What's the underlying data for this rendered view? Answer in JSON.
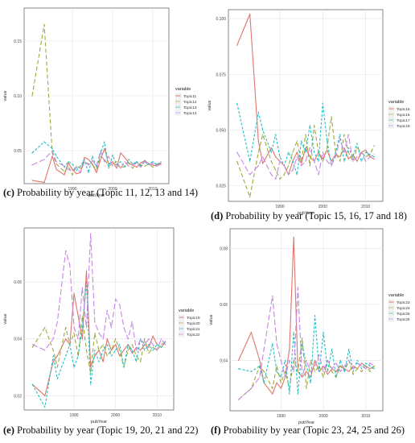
{
  "chart_data": [
    {
      "type": "line",
      "panel": "c",
      "caption_label": "(c)",
      "caption_text": "Probability by year (Topic 11, 12, 13 and 14)",
      "xlabel": "pubYear",
      "ylabel": "value",
      "xlim": [
        1978,
        2014
      ],
      "ylim": [
        0.02,
        0.18
      ],
      "xticks": [
        1990,
        2000,
        2010
      ],
      "yticks": [
        0.05,
        0.1,
        0.15
      ],
      "ytick_labels": [
        "0.05",
        "0.10",
        "0.15"
      ],
      "grid": true,
      "legend": {
        "title": "variable",
        "placement": "right"
      },
      "x": [
        1980,
        1983,
        1985,
        1986,
        1988,
        1989,
        1990,
        1991,
        1992,
        1993,
        1994,
        1995,
        1996,
        1997,
        1998,
        1999,
        2000,
        2001,
        2002,
        2003,
        2004,
        2005,
        2006,
        2007,
        2008,
        2009,
        2010,
        2011,
        2012
      ],
      "series": [
        {
          "name": "Topic11",
          "color": "#E0746C",
          "dash": "",
          "values": [
            0.023,
            0.021,
            0.045,
            0.033,
            0.028,
            0.039,
            0.033,
            0.029,
            0.03,
            0.044,
            0.042,
            0.038,
            0.03,
            0.042,
            0.052,
            0.038,
            0.04,
            0.034,
            0.048,
            0.044,
            0.039,
            0.037,
            0.035,
            0.039,
            0.041,
            0.038,
            0.037,
            0.036,
            0.039
          ]
        },
        {
          "name": "Topic12",
          "color": "#9DAA3A",
          "dash": "5,3",
          "values": [
            0.1,
            0.165,
            0.048,
            0.038,
            0.031,
            0.036,
            0.028,
            0.036,
            0.034,
            0.04,
            0.038,
            0.037,
            0.033,
            0.045,
            0.042,
            0.036,
            0.038,
            0.04,
            0.034,
            0.036,
            0.039,
            0.034,
            0.04,
            0.037,
            0.036,
            0.038,
            0.035,
            0.038,
            0.037
          ]
        },
        {
          "name": "Topic13",
          "color": "#21BFC4",
          "dash": "3,2",
          "values": [
            0.048,
            0.058,
            0.052,
            0.045,
            0.035,
            0.04,
            0.038,
            0.032,
            0.036,
            0.042,
            0.03,
            0.045,
            0.035,
            0.048,
            0.058,
            0.034,
            0.046,
            0.037,
            0.04,
            0.035,
            0.042,
            0.038,
            0.04,
            0.036,
            0.041,
            0.038,
            0.04,
            0.037,
            0.04
          ]
        },
        {
          "name": "Topic14",
          "color": "#C886E6",
          "dash": "7,3",
          "values": [
            0.037,
            0.042,
            0.05,
            0.04,
            0.036,
            0.033,
            0.032,
            0.035,
            0.03,
            0.04,
            0.037,
            0.041,
            0.036,
            0.05,
            0.04,
            0.045,
            0.036,
            0.038,
            0.034,
            0.04,
            0.036,
            0.037,
            0.039,
            0.035,
            0.04,
            0.037,
            0.039,
            0.036,
            0.038
          ]
        }
      ]
    },
    {
      "type": "line",
      "panel": "d",
      "caption_label": "(d)",
      "caption_text": "Probability by year (Topic 15, 16, 17 and 18)",
      "xlabel": "pubYear",
      "ylabel": "value",
      "xlim": [
        1978,
        2014
      ],
      "ylim": [
        0.018,
        0.104
      ],
      "xticks": [
        1990,
        2000,
        2010
      ],
      "yticks": [
        0.025,
        0.05,
        0.075,
        0.1
      ],
      "ytick_labels": [
        "0.025",
        "0.050",
        "0.075",
        "0.100"
      ],
      "grid": true,
      "legend": {
        "title": "variable",
        "placement": "right"
      },
      "x": [
        1980,
        1983,
        1985,
        1986,
        1988,
        1989,
        1990,
        1991,
        1992,
        1993,
        1994,
        1995,
        1996,
        1997,
        1998,
        1999,
        2000,
        2001,
        2002,
        2003,
        2004,
        2005,
        2006,
        2007,
        2008,
        2009,
        2010,
        2011,
        2012
      ],
      "series": [
        {
          "name": "Topic15",
          "color": "#E0746C",
          "dash": "",
          "values": [
            0.088,
            0.102,
            0.045,
            0.035,
            0.042,
            0.038,
            0.036,
            0.034,
            0.03,
            0.036,
            0.04,
            0.035,
            0.042,
            0.038,
            0.036,
            0.04,
            0.037,
            0.041,
            0.036,
            0.039,
            0.038,
            0.042,
            0.037,
            0.039,
            0.036,
            0.04,
            0.041,
            0.038,
            0.037
          ]
        },
        {
          "name": "Topic16",
          "color": "#9DAA3A",
          "dash": "5,3",
          "values": [
            0.036,
            0.02,
            0.04,
            0.048,
            0.036,
            0.032,
            0.028,
            0.03,
            0.034,
            0.04,
            0.045,
            0.036,
            0.048,
            0.034,
            0.052,
            0.04,
            0.036,
            0.042,
            0.056,
            0.04,
            0.036,
            0.048,
            0.04,
            0.036,
            0.042,
            0.04,
            0.038,
            0.039,
            0.043
          ]
        },
        {
          "name": "Topic17",
          "color": "#21BFC4",
          "dash": "3,2",
          "values": [
            0.062,
            0.036,
            0.058,
            0.05,
            0.04,
            0.048,
            0.038,
            0.034,
            0.04,
            0.036,
            0.03,
            0.045,
            0.04,
            0.052,
            0.04,
            0.036,
            0.062,
            0.045,
            0.034,
            0.04,
            0.048,
            0.036,
            0.042,
            0.038,
            0.044,
            0.036,
            0.04,
            0.039,
            0.038
          ]
        },
        {
          "name": "Topic18",
          "color": "#C886E6",
          "dash": "7,3",
          "values": [
            0.04,
            0.03,
            0.034,
            0.038,
            0.03,
            0.028,
            0.036,
            0.034,
            0.03,
            0.032,
            0.038,
            0.034,
            0.036,
            0.042,
            0.036,
            0.03,
            0.04,
            0.036,
            0.034,
            0.038,
            0.046,
            0.04,
            0.048,
            0.036,
            0.038,
            0.04,
            0.036,
            0.038,
            0.039
          ]
        }
      ]
    },
    {
      "type": "line",
      "panel": "e",
      "caption_label": "(e)",
      "caption_text": "Probability by year (Topic 19, 20, 21 and 22)",
      "xlabel": "pubYear",
      "ylabel": "value",
      "xlim": [
        1978,
        2014
      ],
      "ylim": [
        0.015,
        0.079
      ],
      "xticks": [
        1990,
        2000,
        2010
      ],
      "yticks": [
        0.02,
        0.04,
        0.06
      ],
      "ytick_labels": [
        "0.02",
        "0.04",
        "0.06"
      ],
      "grid": true,
      "legend": {
        "title": "variable",
        "placement": "right"
      },
      "x": [
        1980,
        1983,
        1985,
        1986,
        1988,
        1989,
        1990,
        1991,
        1992,
        1993,
        1994,
        1995,
        1996,
        1997,
        1998,
        1999,
        2000,
        2001,
        2002,
        2003,
        2004,
        2005,
        2006,
        2007,
        2008,
        2009,
        2010,
        2011,
        2012
      ],
      "series": [
        {
          "name": "Topic19",
          "color": "#E0746C",
          "dash": "",
          "values": [
            0.024,
            0.02,
            0.032,
            0.034,
            0.04,
            0.038,
            0.056,
            0.048,
            0.04,
            0.064,
            0.03,
            0.034,
            0.036,
            0.032,
            0.04,
            0.036,
            0.038,
            0.034,
            0.036,
            0.038,
            0.035,
            0.037,
            0.036,
            0.038,
            0.037,
            0.041,
            0.038,
            0.037,
            0.039
          ]
        },
        {
          "name": "Topic20",
          "color": "#9DAA3A",
          "dash": "5,3",
          "values": [
            0.037,
            0.044,
            0.036,
            0.03,
            0.044,
            0.038,
            0.042,
            0.034,
            0.048,
            0.036,
            0.028,
            0.042,
            0.036,
            0.038,
            0.034,
            0.036,
            0.04,
            0.036,
            0.03,
            0.036,
            0.038,
            0.034,
            0.032,
            0.04,
            0.035,
            0.037,
            0.036,
            0.038,
            0.039
          ]
        },
        {
          "name": "Topic21",
          "color": "#21BFC4",
          "dash": "3,2",
          "values": [
            0.024,
            0.016,
            0.034,
            0.026,
            0.034,
            0.038,
            0.03,
            0.034,
            0.044,
            0.06,
            0.024,
            0.036,
            0.032,
            0.036,
            0.038,
            0.034,
            0.036,
            0.038,
            0.03,
            0.038,
            0.036,
            0.032,
            0.04,
            0.036,
            0.038,
            0.036,
            0.038,
            0.037,
            0.039
          ]
        },
        {
          "name": "Topic22",
          "color": "#C886E6",
          "dash": "7,3",
          "values": [
            0.038,
            0.036,
            0.04,
            0.046,
            0.071,
            0.066,
            0.044,
            0.04,
            0.058,
            0.044,
            0.077,
            0.046,
            0.042,
            0.04,
            0.05,
            0.044,
            0.054,
            0.052,
            0.044,
            0.04,
            0.046,
            0.036,
            0.04,
            0.038,
            0.04,
            0.038,
            0.036,
            0.04,
            0.038
          ]
        }
      ]
    },
    {
      "type": "line",
      "panel": "f",
      "caption_label": "(f)",
      "caption_text": "Probability by year (Topic 23, 24, 25 and 26)",
      "xlabel": "pubYear",
      "ylabel": "value",
      "xlim": [
        1978,
        2014
      ],
      "ylim": [
        0.022,
        0.087
      ],
      "xticks": [
        1990,
        2000,
        2010
      ],
      "yticks": [
        0.04,
        0.06,
        0.08
      ],
      "ytick_labels": [
        "0.04",
        "0.06",
        "0.08"
      ],
      "grid": true,
      "legend": {
        "title": "variable",
        "placement": "right"
      },
      "x": [
        1980,
        1983,
        1985,
        1986,
        1988,
        1989,
        1990,
        1991,
        1992,
        1993,
        1994,
        1995,
        1996,
        1997,
        1998,
        1999,
        2000,
        2001,
        2002,
        2003,
        2004,
        2005,
        2006,
        2007,
        2008,
        2009,
        2010,
        2011,
        2012
      ],
      "series": [
        {
          "name": "Topic23",
          "color": "#E0746C",
          "dash": "",
          "values": [
            0.04,
            0.05,
            0.04,
            0.032,
            0.028,
            0.032,
            0.03,
            0.034,
            0.044,
            0.084,
            0.036,
            0.034,
            0.036,
            0.034,
            0.04,
            0.036,
            0.038,
            0.035,
            0.037,
            0.036,
            0.038,
            0.037,
            0.036,
            0.038,
            0.037,
            0.039,
            0.038,
            0.037,
            0.038
          ]
        },
        {
          "name": "Topic24",
          "color": "#9DAA3A",
          "dash": "5,3",
          "values": [
            0.026,
            0.03,
            0.038,
            0.036,
            0.03,
            0.038,
            0.032,
            0.036,
            0.03,
            0.04,
            0.036,
            0.048,
            0.03,
            0.04,
            0.036,
            0.038,
            0.034,
            0.04,
            0.036,
            0.034,
            0.038,
            0.036,
            0.04,
            0.035,
            0.037,
            0.036,
            0.038,
            0.036,
            0.038
          ]
        },
        {
          "name": "Topic25",
          "color": "#21BFC4",
          "dash": "3,2",
          "values": [
            0.037,
            0.036,
            0.038,
            0.032,
            0.046,
            0.036,
            0.034,
            0.04,
            0.028,
            0.05,
            0.028,
            0.046,
            0.038,
            0.032,
            0.056,
            0.036,
            0.05,
            0.036,
            0.044,
            0.034,
            0.04,
            0.036,
            0.044,
            0.036,
            0.04,
            0.037,
            0.039,
            0.038,
            0.037
          ]
        },
        {
          "name": "Topic26",
          "color": "#C886E6",
          "dash": "7,3",
          "values": [
            0.026,
            0.03,
            0.034,
            0.044,
            0.063,
            0.046,
            0.04,
            0.034,
            0.04,
            0.036,
            0.066,
            0.034,
            0.04,
            0.036,
            0.038,
            0.042,
            0.036,
            0.04,
            0.037,
            0.039,
            0.036,
            0.038,
            0.04,
            0.037,
            0.039,
            0.038,
            0.037,
            0.039,
            0.038
          ]
        }
      ]
    }
  ]
}
